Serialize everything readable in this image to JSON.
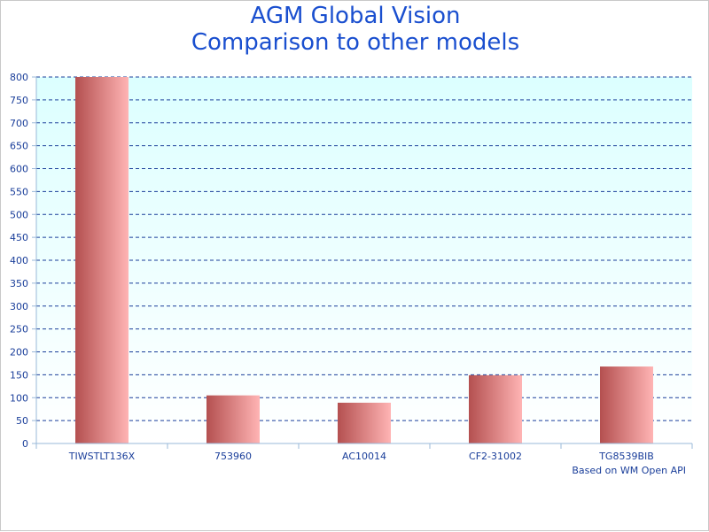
{
  "chart_data": {
    "type": "bar",
    "title": "AGM Global Vision",
    "subtitle": "Comparison to other models",
    "categories": [
      "TIWSTLT136X",
      "753960",
      "AC10014",
      "CF2-31002",
      "TG8539BIB"
    ],
    "values": [
      800,
      105,
      89,
      149,
      168
    ],
    "ylim": [
      0,
      800
    ],
    "yticks": [
      0,
      50,
      100,
      150,
      200,
      250,
      300,
      350,
      400,
      450,
      500,
      550,
      600,
      650,
      700,
      750,
      800
    ],
    "xlabel": "",
    "ylabel": "",
    "grid": true,
    "annotation": "Based on WM Open API"
  },
  "colors": {
    "title": "#1a4fcf",
    "axis_text": "#1a3e9a",
    "grid": "#1a3e9a",
    "plot_bg_top": "#dcffff",
    "plot_bg_bottom": "#ffffff",
    "bar_dark": "#b45050",
    "bar_light": "#ffb4b4"
  }
}
